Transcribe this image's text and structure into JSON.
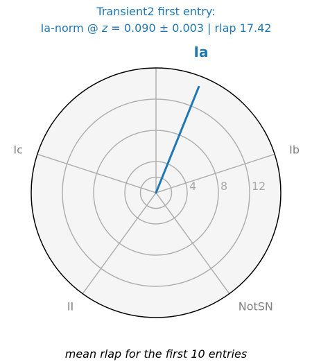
{
  "chart_data": {
    "type": "radar",
    "title_line1": "Transient2 first entry:",
    "title_line2": "Ia-norm @ z = 0.090 ± 0.003 | rlap 17.42",
    "title_line2_parts": {
      "prefix": "Ia-norm @ ",
      "z_symbol": "z",
      "suffix": " = 0.090 ± 0.003 | rlap 17.42"
    },
    "caption": "mean rlap for the first 10 entries",
    "categories": [
      "Ia",
      "Ib",
      "NotSN",
      "II",
      "Ic"
    ],
    "highlight_category": "Ia",
    "values": [
      17.42,
      0,
      0,
      0,
      0
    ],
    "rmax": 16,
    "rticks": [
      4,
      8,
      12
    ],
    "rtick_labels": [
      "4",
      "8",
      "12"
    ],
    "colors": {
      "series": "#1f77b4",
      "title": "#1f77b4",
      "grid": "#b0b0b0",
      "background": "#f5f5f5",
      "outline": "#000000",
      "label": "#808080"
    }
  }
}
